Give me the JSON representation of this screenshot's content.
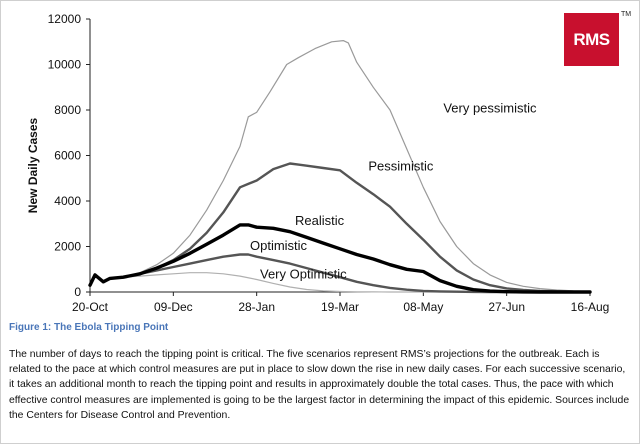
{
  "chart_data": {
    "type": "line",
    "title": "",
    "xlabel": "",
    "ylabel": "New Daily Cases",
    "ylim": [
      0,
      12000
    ],
    "yticks": [
      0,
      2000,
      4000,
      6000,
      8000,
      10000,
      12000
    ],
    "x_tick_labels": [
      "20-Oct",
      "09-Dec",
      "28-Jan",
      "19-Mar",
      "08-May",
      "27-Jun",
      "16-Aug"
    ],
    "x_tick_days": [
      0,
      50,
      100,
      150,
      200,
      250,
      300
    ],
    "grid": false,
    "series": [
      {
        "name": "Very pessimistic",
        "color": "#9a9a9a",
        "width": 1.2,
        "x": [
          0,
          3,
          8,
          12,
          20,
          30,
          40,
          50,
          60,
          70,
          80,
          90,
          95,
          100,
          108,
          118,
          125,
          135,
          145,
          152,
          155,
          160,
          170,
          180,
          190,
          200,
          210,
          220,
          230,
          240,
          250,
          260,
          270,
          280,
          290,
          300
        ],
        "y": [
          300,
          750,
          450,
          600,
          650,
          850,
          1200,
          1700,
          2500,
          3600,
          4900,
          6400,
          7700,
          7900,
          8800,
          10000,
          10300,
          10700,
          11000,
          11050,
          10950,
          10100,
          9000,
          8000,
          6300,
          4600,
          3100,
          2000,
          1250,
          750,
          420,
          250,
          150,
          90,
          50,
          30
        ]
      },
      {
        "name": "Pessimistic",
        "color": "#555555",
        "width": 2.4,
        "x": [
          0,
          3,
          8,
          12,
          20,
          30,
          40,
          50,
          60,
          70,
          80,
          90,
          95,
          100,
          110,
          120,
          125,
          130,
          140,
          150,
          160,
          170,
          180,
          190,
          200,
          210,
          220,
          230,
          240,
          250,
          260,
          270,
          280,
          290,
          300
        ],
        "y": [
          300,
          750,
          450,
          600,
          650,
          800,
          1050,
          1400,
          1900,
          2600,
          3500,
          4600,
          4750,
          4900,
          5400,
          5650,
          5600,
          5550,
          5450,
          5350,
          4800,
          4300,
          3750,
          3000,
          2300,
          1550,
          950,
          550,
          300,
          160,
          90,
          50,
          30,
          15,
          10
        ]
      },
      {
        "name": "Realistic",
        "color": "#000000",
        "width": 3.4,
        "x": [
          0,
          3,
          8,
          12,
          20,
          30,
          40,
          50,
          60,
          70,
          80,
          90,
          95,
          100,
          110,
          120,
          130,
          140,
          150,
          160,
          170,
          180,
          190,
          200,
          210,
          220,
          230,
          240,
          250,
          260,
          270,
          280,
          290,
          300
        ],
        "y": [
          300,
          750,
          450,
          600,
          650,
          800,
          1050,
          1350,
          1700,
          2100,
          2500,
          2950,
          2950,
          2850,
          2800,
          2650,
          2400,
          2150,
          1900,
          1650,
          1450,
          1200,
          1000,
          900,
          500,
          250,
          100,
          40,
          15,
          5,
          2,
          0,
          0,
          0
        ]
      },
      {
        "name": "Optimistic",
        "color": "#555555",
        "width": 2.4,
        "x": [
          0,
          3,
          8,
          12,
          20,
          30,
          40,
          50,
          60,
          70,
          80,
          90,
          95,
          100,
          110,
          120,
          130,
          140,
          150,
          160,
          170,
          180,
          190,
          200,
          210,
          220,
          230,
          240,
          250,
          260,
          270,
          280,
          290,
          300
        ],
        "y": [
          300,
          750,
          450,
          600,
          650,
          800,
          950,
          1100,
          1250,
          1400,
          1550,
          1650,
          1650,
          1550,
          1400,
          1250,
          1050,
          850,
          650,
          450,
          300,
          180,
          100,
          50,
          25,
          12,
          5,
          2,
          0,
          0,
          0,
          0,
          0,
          0
        ]
      },
      {
        "name": "Very Optimistic",
        "color": "#b0b0b0",
        "width": 1.2,
        "x": [
          0,
          3,
          8,
          12,
          20,
          30,
          40,
          50,
          60,
          70,
          80,
          90,
          100,
          110,
          120,
          130,
          140,
          150,
          160,
          170,
          180,
          190,
          200,
          210,
          220,
          230,
          240,
          250,
          260,
          270,
          280,
          290,
          300
        ],
        "y": [
          300,
          750,
          450,
          600,
          650,
          700,
          750,
          800,
          850,
          850,
          800,
          700,
          550,
          380,
          220,
          110,
          50,
          20,
          8,
          3,
          1,
          0,
          0,
          0,
          0,
          0,
          0,
          0,
          0,
          0,
          0,
          0,
          0
        ]
      }
    ],
    "annotations": [
      {
        "text": "Very pessimistic",
        "x": 212,
        "y": 7900
      },
      {
        "text": "Pessimistic",
        "x": 167,
        "y": 5350
      },
      {
        "text": "Realistic",
        "x": 123,
        "y": 2950
      },
      {
        "text": "Optimistic",
        "x": 96,
        "y": 1850
      },
      {
        "text": "Very Optimistic",
        "x": 102,
        "y": 600
      }
    ]
  },
  "logo": {
    "text": "RMS",
    "tm": "TM",
    "color": "#c8102e"
  },
  "caption": "Figure 1: The Ebola Tipping Point",
  "description": "The number of days to reach the tipping point is critical.  The five scenarios represent RMS’s projections for the outbreak. Each is related to the pace at which control measures are put in place to slow down the rise in new daily cases.  For each successive scenario, it takes an additional month to reach the tipping point and results in approximately double the total cases. Thus, the pace with which effective control measures are implemented is going to be the largest factor in determining the impact of this epidemic.  Sources include the Centers for Disease Control and Prevention."
}
